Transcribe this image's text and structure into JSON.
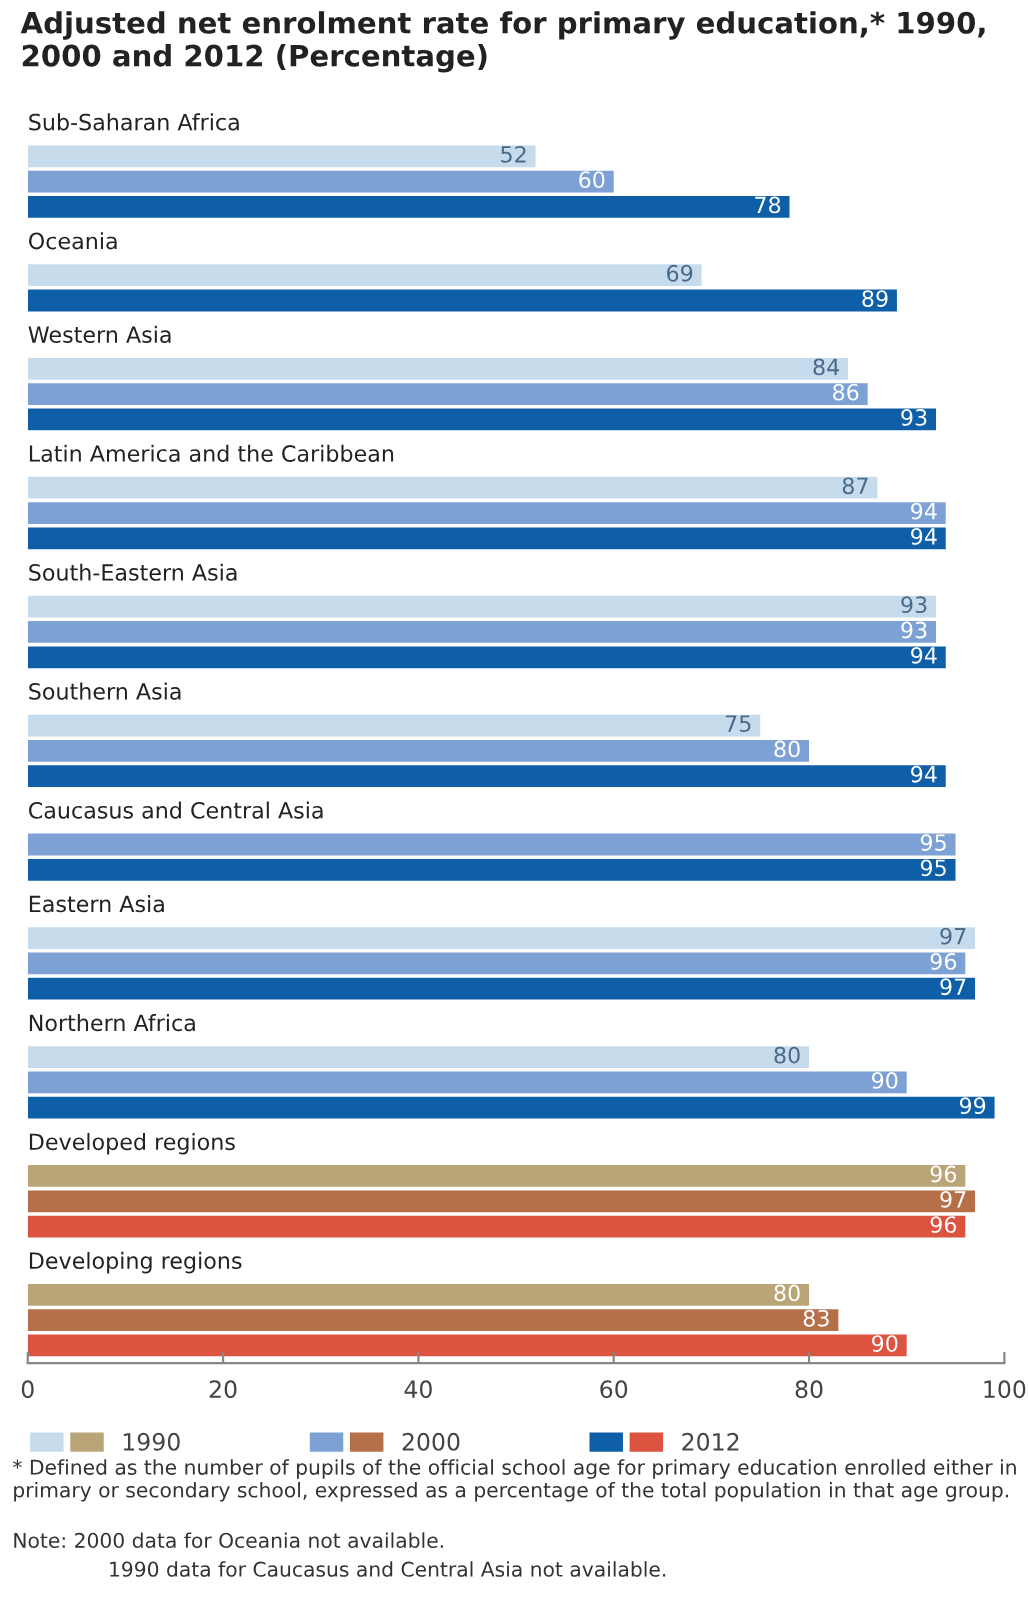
{
  "chart_data": {
    "type": "bar",
    "orientation": "horizontal",
    "title": "Adjusted net enrolment rate for primary education,* 1990, 2000 and 2012 (Percentage)",
    "categories": [
      "Sub-Saharan Africa",
      "Oceania",
      "Western Asia",
      "Latin America and the Caribbean",
      "South-Eastern Asia",
      "Southern Asia",
      "Caucasus and Central Asia",
      "Eastern Asia",
      "Northern Africa",
      "Developed regions",
      "Developing regions"
    ],
    "series": [
      {
        "name": "1990",
        "colors": [
          "#c6dcec",
          "#c6dcec",
          "#c6dcec",
          "#c6dcec",
          "#c6dcec",
          "#c6dcec",
          "#c6dcec",
          "#c6dcec",
          "#c6dcec",
          "#b9a578",
          "#b9a578"
        ],
        "values": [
          52,
          69,
          84,
          87,
          93,
          75,
          null,
          97,
          80,
          96,
          80
        ]
      },
      {
        "name": "2000",
        "colors": [
          "#7da1d4",
          "#7da1d4",
          "#7da1d4",
          "#7da1d4",
          "#7da1d4",
          "#7da1d4",
          "#7da1d4",
          "#7da1d4",
          "#7da1d4",
          "#b5704a",
          "#b5704a"
        ],
        "values": [
          60,
          null,
          86,
          94,
          93,
          80,
          95,
          96,
          90,
          97,
          83
        ]
      },
      {
        "name": "2012",
        "colors": [
          "#0e5fa8",
          "#0e5fa8",
          "#0e5fa8",
          "#0e5fa8",
          "#0e5fa8",
          "#0e5fa8",
          "#0e5fa8",
          "#0e5fa8",
          "#0e5fa8",
          "#dc5440",
          "#dc5440"
        ],
        "values": [
          78,
          89,
          93,
          94,
          94,
          94,
          95,
          97,
          99,
          96,
          90
        ]
      }
    ],
    "xlim": [
      0,
      100
    ],
    "xticks": [
      0,
      20,
      40,
      60,
      80,
      100
    ],
    "data_labels": true,
    "grid": false,
    "legend": "bottom",
    "annotations": [
      "* Defined as the number of pupils of the official school age for primary education enrolled either in primary or secondary school, expressed as a percentage of the total population in that age group.",
      "Note: 2000 data for Oceania not available.",
      "1990 data for Caucasus and Central Asia not available."
    ]
  }
}
